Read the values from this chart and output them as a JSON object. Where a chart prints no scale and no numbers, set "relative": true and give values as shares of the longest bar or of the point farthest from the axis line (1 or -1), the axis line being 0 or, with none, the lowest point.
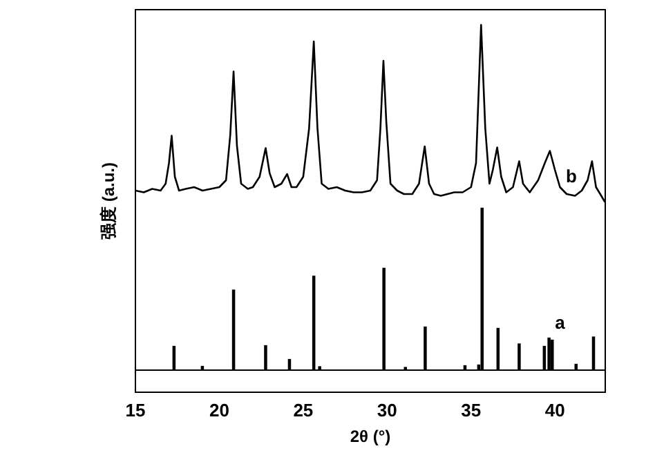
{
  "chart_data": {
    "type": "line",
    "xlabel": "2θ (°)",
    "ylabel": "强度 (a.u.)",
    "relative": true,
    "xlim": [
      15,
      43
    ],
    "xticks": [
      15,
      20,
      25,
      30,
      35,
      40
    ],
    "tick_labels": "x",
    "grid": false,
    "legend": false,
    "marker": "none",
    "line_style": "solid",
    "series": [
      {
        "name": "b",
        "color": "#000000",
        "x": [
          15.0,
          15.5,
          16.0,
          16.5,
          16.8,
          17.0,
          17.16,
          17.35,
          17.6,
          18.0,
          18.5,
          19.0,
          19.5,
          20.0,
          20.4,
          20.65,
          20.85,
          21.05,
          21.3,
          21.7,
          22.0,
          22.4,
          22.76,
          23.0,
          23.3,
          23.7,
          24.04,
          24.3,
          24.6,
          25.0,
          25.35,
          25.63,
          25.85,
          26.1,
          26.5,
          27.0,
          27.5,
          28.0,
          28.5,
          29.0,
          29.4,
          29.6,
          29.78,
          29.95,
          30.2,
          30.6,
          31.0,
          31.5,
          31.9,
          32.24,
          32.5,
          32.8,
          33.2,
          33.6,
          34.0,
          34.5,
          35.0,
          35.3,
          35.6,
          35.85,
          36.1,
          36.3,
          36.56,
          36.8,
          37.1,
          37.5,
          37.87,
          38.1,
          38.5,
          39.0,
          39.4,
          39.7,
          40.0,
          40.3,
          40.7,
          41.2,
          41.6,
          41.95,
          42.21,
          42.45,
          42.7,
          42.98
        ],
        "values": [
          0.52,
          0.515,
          0.525,
          0.52,
          0.54,
          0.6,
          0.679,
          0.56,
          0.52,
          0.525,
          0.53,
          0.52,
          0.525,
          0.53,
          0.55,
          0.68,
          0.865,
          0.65,
          0.54,
          0.525,
          0.53,
          0.56,
          0.643,
          0.57,
          0.53,
          0.54,
          0.568,
          0.53,
          0.53,
          0.56,
          0.7,
          0.952,
          0.7,
          0.54,
          0.525,
          0.53,
          0.52,
          0.515,
          0.515,
          0.52,
          0.55,
          0.7,
          0.896,
          0.72,
          0.54,
          0.52,
          0.51,
          0.51,
          0.54,
          0.648,
          0.54,
          0.51,
          0.505,
          0.51,
          0.515,
          0.515,
          0.53,
          0.6,
          1,
          0.7,
          0.54,
          0.58,
          0.645,
          0.56,
          0.515,
          0.53,
          0.605,
          0.54,
          0.515,
          0.55,
          0.6,
          0.635,
          0.58,
          0.53,
          0.51,
          0.505,
          0.52,
          0.55,
          0.605,
          0.53,
          0.51,
          0.487
        ]
      },
      {
        "name": "a",
        "type": "bar",
        "color": "#000000",
        "x": [
          17.3,
          18.99,
          20.85,
          22.76,
          24.18,
          25.63,
          25.98,
          29.81,
          31.09,
          32.27,
          34.64,
          35.46,
          35.66,
          36.61,
          37.87,
          39.37,
          39.65,
          39.84,
          41.26,
          42.3
        ],
        "values": [
          0.069,
          0.011,
          0.232,
          0.071,
          0.031,
          0.272,
          0.01,
          0.295,
          0.008,
          0.125,
          0.013,
          0.015,
          0.469,
          0.121,
          0.076,
          0.069,
          0.093,
          0.087,
          0.017,
          0.096
        ]
      }
    ]
  }
}
